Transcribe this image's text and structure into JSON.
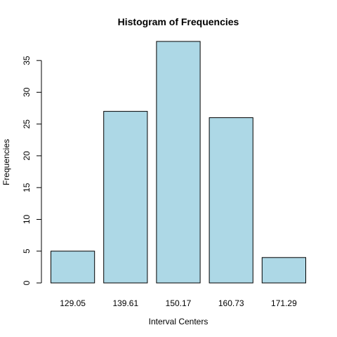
{
  "chart_data": {
    "type": "bar",
    "title": "Histogram of Frequencies",
    "xlabel": "Interval Centers",
    "ylabel": "Frequencies",
    "categories": [
      "129.05",
      "139.61",
      "150.17",
      "160.73",
      "171.29"
    ],
    "values": [
      5,
      27,
      38,
      26,
      4
    ],
    "ylim": [
      0,
      38
    ],
    "yticks": [
      0,
      5,
      10,
      15,
      20,
      25,
      30,
      35
    ],
    "grid": false,
    "bar_fill": "#add8e6",
    "bar_stroke": "#000000"
  }
}
